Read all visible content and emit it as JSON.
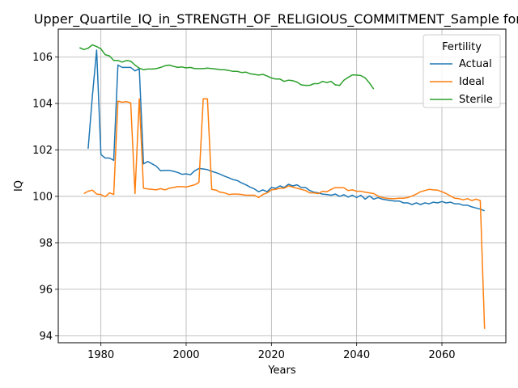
{
  "chart_data": {
    "type": "line",
    "title": "Upper_Quartile_IQ_in_STRENGTH_OF_RELIGIOUS_COMMITMENT_Sample for Bla",
    "xlabel": "Years",
    "ylabel": "IQ",
    "xlim": [
      1970,
      2075
    ],
    "ylim": [
      93.7,
      107.2
    ],
    "x_ticks": [
      1980,
      2000,
      2020,
      2040,
      2060
    ],
    "y_ticks": [
      94,
      96,
      98,
      100,
      102,
      104,
      106
    ],
    "grid": true,
    "legend": {
      "title": "Fertility",
      "position": "top-right"
    },
    "series": [
      {
        "name": "Actual",
        "color": "#1f77b4",
        "points": [
          [
            1977,
            102.05
          ],
          [
            1978,
            104.3
          ],
          [
            1979,
            106.3
          ],
          [
            1980,
            101.8
          ],
          [
            1981,
            101.65
          ],
          [
            1982,
            101.65
          ],
          [
            1983,
            101.55
          ],
          [
            1984,
            105.65
          ],
          [
            1985,
            105.55
          ],
          [
            1986,
            105.55
          ],
          [
            1987,
            105.55
          ],
          [
            1988,
            105.4
          ],
          [
            1989,
            105.5
          ],
          [
            1990,
            101.4
          ],
          [
            1991,
            101.5
          ],
          [
            1992,
            101.4
          ],
          [
            1993,
            101.3
          ],
          [
            1994,
            101.1
          ],
          [
            1995,
            101.12
          ],
          [
            1996,
            101.12
          ],
          [
            1997,
            101.08
          ],
          [
            1998,
            101.03
          ],
          [
            1999,
            100.95
          ],
          [
            2000,
            100.97
          ],
          [
            2001,
            100.93
          ],
          [
            2002,
            101.1
          ],
          [
            2003,
            101.2
          ],
          [
            2004,
            101.18
          ],
          [
            2005,
            101.15
          ],
          [
            2006,
            101.08
          ],
          [
            2007,
            101.02
          ],
          [
            2008,
            100.95
          ],
          [
            2009,
            100.87
          ],
          [
            2010,
            100.8
          ],
          [
            2011,
            100.72
          ],
          [
            2012,
            100.68
          ],
          [
            2013,
            100.58
          ],
          [
            2014,
            100.5
          ],
          [
            2015,
            100.4
          ],
          [
            2016,
            100.32
          ],
          [
            2017,
            100.2
          ],
          [
            2018,
            100.28
          ],
          [
            2019,
            100.2
          ],
          [
            2020,
            100.38
          ],
          [
            2021,
            100.35
          ],
          [
            2022,
            100.45
          ],
          [
            2023,
            100.38
          ],
          [
            2024,
            100.52
          ],
          [
            2025,
            100.45
          ],
          [
            2026,
            100.5
          ],
          [
            2027,
            100.38
          ],
          [
            2028,
            100.38
          ],
          [
            2029,
            100.25
          ],
          [
            2030,
            100.18
          ],
          [
            2031,
            100.15
          ],
          [
            2032,
            100.1
          ],
          [
            2033,
            100.08
          ],
          [
            2034,
            100.05
          ],
          [
            2035,
            100.1
          ],
          [
            2036,
            100.0
          ],
          [
            2037,
            100.07
          ],
          [
            2038,
            99.97
          ],
          [
            2039,
            100.05
          ],
          [
            2040,
            99.95
          ],
          [
            2041,
            100.05
          ],
          [
            2042,
            99.88
          ],
          [
            2043,
            100.02
          ],
          [
            2044,
            99.88
          ],
          [
            2045,
            99.95
          ],
          [
            2046,
            99.88
          ],
          [
            2047,
            99.85
          ],
          [
            2048,
            99.82
          ],
          [
            2049,
            99.8
          ],
          [
            2050,
            99.8
          ],
          [
            2051,
            99.72
          ],
          [
            2052,
            99.72
          ],
          [
            2053,
            99.65
          ],
          [
            2054,
            99.72
          ],
          [
            2055,
            99.65
          ],
          [
            2056,
            99.72
          ],
          [
            2057,
            99.68
          ],
          [
            2058,
            99.75
          ],
          [
            2059,
            99.72
          ],
          [
            2060,
            99.78
          ],
          [
            2061,
            99.72
          ],
          [
            2062,
            99.75
          ],
          [
            2063,
            99.68
          ],
          [
            2064,
            99.68
          ],
          [
            2065,
            99.62
          ],
          [
            2066,
            99.62
          ],
          [
            2067,
            99.55
          ],
          [
            2068,
            99.5
          ],
          [
            2069,
            99.45
          ],
          [
            2070,
            99.38
          ]
        ]
      },
      {
        "name": "Ideal",
        "color": "#ff7f0e",
        "points": [
          [
            1976,
            100.12
          ],
          [
            1977,
            100.22
          ],
          [
            1978,
            100.27
          ],
          [
            1979,
            100.1
          ],
          [
            1980,
            100.08
          ],
          [
            1981,
            99.98
          ],
          [
            1982,
            100.15
          ],
          [
            1983,
            100.08
          ],
          [
            1984,
            104.1
          ],
          [
            1985,
            104.05
          ],
          [
            1986,
            104.08
          ],
          [
            1987,
            104.02
          ],
          [
            1988,
            100.12
          ],
          [
            1989,
            104.2
          ],
          [
            1990,
            100.35
          ],
          [
            1991,
            100.32
          ],
          [
            1992,
            100.3
          ],
          [
            1993,
            100.28
          ],
          [
            1994,
            100.33
          ],
          [
            1995,
            100.28
          ],
          [
            1996,
            100.35
          ],
          [
            1997,
            100.38
          ],
          [
            1998,
            100.42
          ],
          [
            1999,
            100.42
          ],
          [
            2000,
            100.4
          ],
          [
            2001,
            100.45
          ],
          [
            2002,
            100.5
          ],
          [
            2003,
            100.6
          ],
          [
            2004,
            104.2
          ],
          [
            2005,
            104.2
          ],
          [
            2006,
            100.3
          ],
          [
            2007,
            100.27
          ],
          [
            2008,
            100.18
          ],
          [
            2009,
            100.15
          ],
          [
            2010,
            100.08
          ],
          [
            2011,
            100.1
          ],
          [
            2012,
            100.1
          ],
          [
            2013,
            100.08
          ],
          [
            2014,
            100.05
          ],
          [
            2015,
            100.05
          ],
          [
            2016,
            100.05
          ],
          [
            2017,
            99.95
          ],
          [
            2018,
            100.08
          ],
          [
            2019,
            100.15
          ],
          [
            2020,
            100.28
          ],
          [
            2021,
            100.3
          ],
          [
            2022,
            100.35
          ],
          [
            2023,
            100.35
          ],
          [
            2024,
            100.45
          ],
          [
            2025,
            100.4
          ],
          [
            2026,
            100.35
          ],
          [
            2027,
            100.3
          ],
          [
            2028,
            100.25
          ],
          [
            2029,
            100.15
          ],
          [
            2030,
            100.15
          ],
          [
            2031,
            100.12
          ],
          [
            2032,
            100.22
          ],
          [
            2033,
            100.2
          ],
          [
            2034,
            100.3
          ],
          [
            2035,
            100.38
          ],
          [
            2036,
            100.37
          ],
          [
            2037,
            100.37
          ],
          [
            2038,
            100.25
          ],
          [
            2039,
            100.28
          ],
          [
            2040,
            100.22
          ],
          [
            2041,
            100.22
          ],
          [
            2042,
            100.18
          ],
          [
            2043,
            100.15
          ],
          [
            2044,
            100.12
          ],
          [
            2045,
            100.02
          ],
          [
            2046,
            99.95
          ],
          [
            2047,
            99.92
          ],
          [
            2048,
            99.9
          ],
          [
            2049,
            99.9
          ],
          [
            2050,
            99.92
          ],
          [
            2051,
            99.92
          ],
          [
            2052,
            99.95
          ],
          [
            2053,
            100.02
          ],
          [
            2054,
            100.1
          ],
          [
            2055,
            100.2
          ],
          [
            2056,
            100.25
          ],
          [
            2057,
            100.3
          ],
          [
            2058,
            100.28
          ],
          [
            2059,
            100.27
          ],
          [
            2060,
            100.2
          ],
          [
            2061,
            100.12
          ],
          [
            2062,
            100.02
          ],
          [
            2063,
            99.92
          ],
          [
            2064,
            99.9
          ],
          [
            2065,
            99.85
          ],
          [
            2066,
            99.9
          ],
          [
            2067,
            99.82
          ],
          [
            2068,
            99.88
          ],
          [
            2069,
            99.82
          ],
          [
            2070,
            94.3
          ]
        ]
      },
      {
        "name": "Sterile",
        "color": "#2ca02c",
        "points": [
          [
            1975,
            106.4
          ],
          [
            1976,
            106.32
          ],
          [
            1977,
            106.38
          ],
          [
            1978,
            106.52
          ],
          [
            1979,
            106.45
          ],
          [
            1980,
            106.35
          ],
          [
            1981,
            106.1
          ],
          [
            1982,
            106.05
          ],
          [
            1983,
            105.85
          ],
          [
            1984,
            105.85
          ],
          [
            1985,
            105.78
          ],
          [
            1986,
            105.85
          ],
          [
            1987,
            105.82
          ],
          [
            1988,
            105.65
          ],
          [
            1989,
            105.52
          ],
          [
            1990,
            105.45
          ],
          [
            1991,
            105.48
          ],
          [
            1992,
            105.48
          ],
          [
            1993,
            105.5
          ],
          [
            1994,
            105.55
          ],
          [
            1995,
            105.62
          ],
          [
            1996,
            105.65
          ],
          [
            1997,
            105.6
          ],
          [
            1998,
            105.55
          ],
          [
            1999,
            105.57
          ],
          [
            2000,
            105.53
          ],
          [
            2001,
            105.55
          ],
          [
            2002,
            105.5
          ],
          [
            2003,
            105.5
          ],
          [
            2004,
            105.5
          ],
          [
            2005,
            105.52
          ],
          [
            2006,
            105.5
          ],
          [
            2007,
            105.48
          ],
          [
            2008,
            105.45
          ],
          [
            2009,
            105.45
          ],
          [
            2010,
            105.42
          ],
          [
            2011,
            105.38
          ],
          [
            2012,
            105.38
          ],
          [
            2013,
            105.33
          ],
          [
            2014,
            105.35
          ],
          [
            2015,
            105.28
          ],
          [
            2016,
            105.25
          ],
          [
            2017,
            105.22
          ],
          [
            2018,
            105.25
          ],
          [
            2019,
            105.18
          ],
          [
            2020,
            105.1
          ],
          [
            2021,
            105.05
          ],
          [
            2022,
            105.05
          ],
          [
            2023,
            104.95
          ],
          [
            2024,
            105.0
          ],
          [
            2025,
            104.98
          ],
          [
            2026,
            104.92
          ],
          [
            2027,
            104.8
          ],
          [
            2028,
            104.78
          ],
          [
            2029,
            104.78
          ],
          [
            2030,
            104.85
          ],
          [
            2031,
            104.85
          ],
          [
            2032,
            104.95
          ],
          [
            2033,
            104.9
          ],
          [
            2034,
            104.95
          ],
          [
            2035,
            104.8
          ],
          [
            2036,
            104.78
          ],
          [
            2037,
            105.0
          ],
          [
            2038,
            105.12
          ],
          [
            2039,
            105.23
          ],
          [
            2040,
            105.22
          ],
          [
            2041,
            105.2
          ],
          [
            2042,
            105.1
          ],
          [
            2043,
            104.88
          ],
          [
            2044,
            104.62
          ]
        ]
      }
    ]
  }
}
